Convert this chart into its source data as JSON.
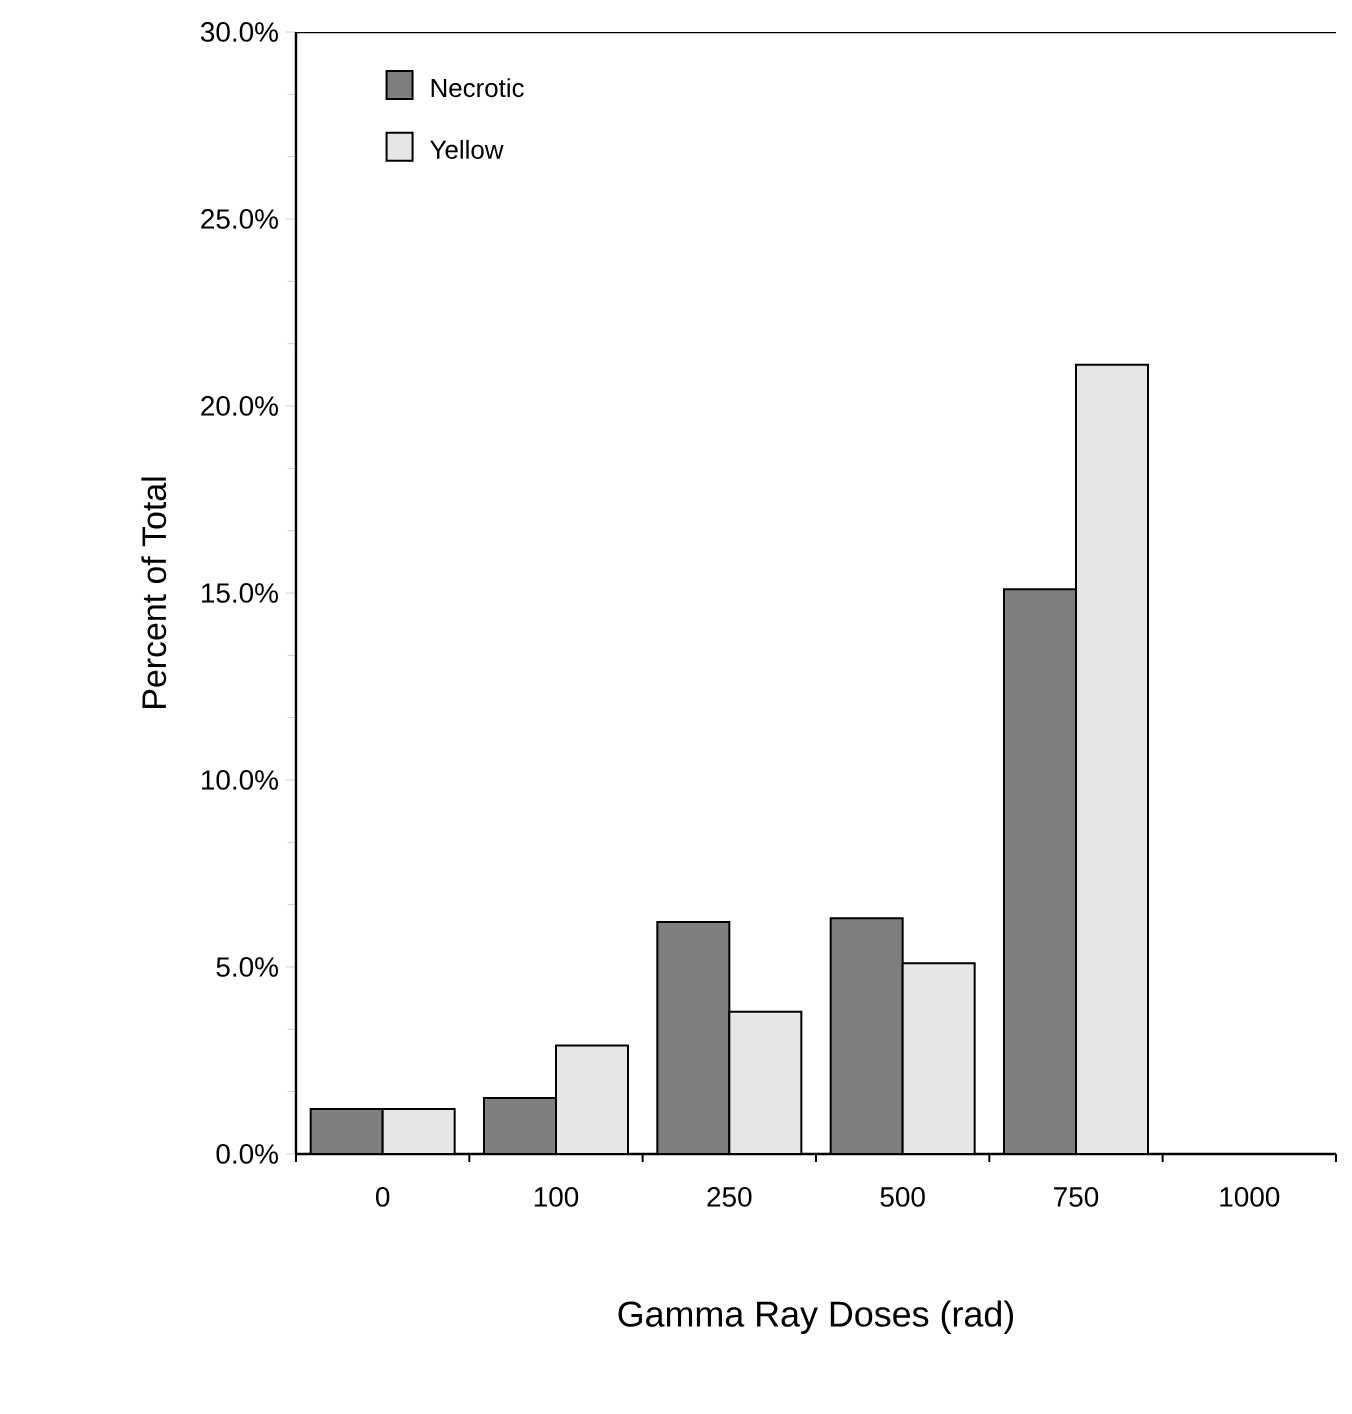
{
  "chart_data": {
    "type": "bar",
    "xlabel": "Gamma Ray Doses (rad)",
    "ylabel": "Percent of Total",
    "categories": [
      "0",
      "100",
      "250",
      "500",
      "750",
      "1000"
    ],
    "series": [
      {
        "name": "Necrotic",
        "color": "#7f7f7f",
        "values": [
          1.2,
          1.5,
          6.2,
          6.3,
          15.1,
          null
        ]
      },
      {
        "name": "Yellow",
        "color": "#e6e6e6",
        "values": [
          1.2,
          2.9,
          3.8,
          5.1,
          21.1,
          null
        ]
      }
    ],
    "ylim": [
      0,
      30
    ],
    "yticks": [
      {
        "value": 0,
        "label": "0.0%"
      },
      {
        "value": 5,
        "label": "5.0%"
      },
      {
        "value": 10,
        "label": "10.0%"
      },
      {
        "value": 15,
        "label": "15.0%"
      },
      {
        "value": 20,
        "label": "20.0%"
      },
      {
        "value": 25,
        "label": "25.0%"
      },
      {
        "value": 30,
        "label": "30.0%"
      }
    ],
    "legend": "top left",
    "grid": false
  }
}
